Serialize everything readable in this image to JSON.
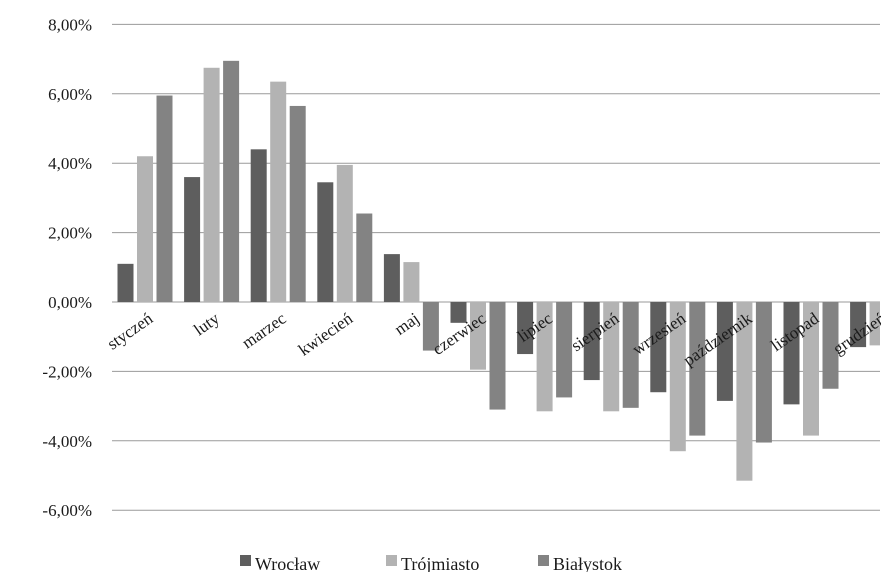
{
  "chart_data": {
    "type": "bar",
    "categories": [
      "styczeń",
      "luty",
      "marzec",
      "kwiecień",
      "maj",
      "czerwiec",
      "lipiec",
      "sierpień",
      "wrzesień",
      "październik",
      "listopad",
      "grudzień"
    ],
    "series": [
      {
        "name": "Wrocław",
        "color": "#5e5e5e",
        "values": [
          1.1,
          3.6,
          4.4,
          3.45,
          1.38,
          -0.6,
          -1.5,
          -2.25,
          -2.6,
          -2.85,
          -2.95,
          -1.3
        ]
      },
      {
        "name": "Trójmiasto",
        "color": "#b3b3b3",
        "values": [
          4.2,
          6.75,
          6.35,
          3.95,
          1.15,
          -1.95,
          -3.15,
          -3.15,
          -4.3,
          -5.15,
          -3.85,
          -1.25
        ]
      },
      {
        "name": "Białystok",
        "color": "#838383",
        "values": [
          5.95,
          6.95,
          5.65,
          2.55,
          -1.4,
          -3.1,
          -2.75,
          -3.05,
          -3.85,
          -4.05,
          -2.5,
          null
        ]
      }
    ],
    "yticks": [
      "8,00%",
      "6,00%",
      "4,00%",
      "2,00%",
      "0,00%",
      "-2,00%",
      "-4,00%",
      "-6,00%"
    ],
    "ylim": [
      -6,
      8
    ],
    "grid": true,
    "legend": "bottom"
  }
}
